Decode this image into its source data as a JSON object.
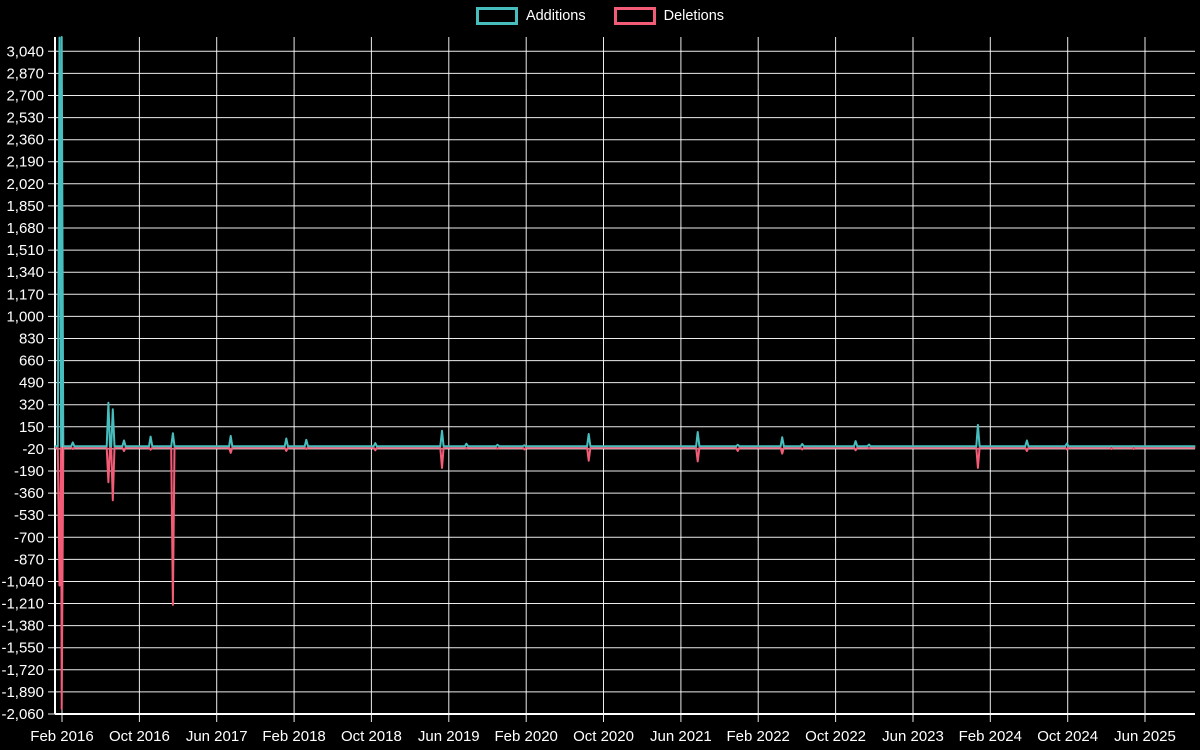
{
  "chart_data": {
    "type": "line",
    "title": "",
    "background_color": "#000000",
    "grid": "on",
    "grid_color": "#ffffff",
    "text_color": "#ffffff",
    "legend_position": "top-center",
    "series": [
      {
        "name": "Additions",
        "color": "#47bdbd"
      },
      {
        "name": "Deletions",
        "color": "#f25c77"
      }
    ],
    "x_axis": {
      "tick_labels": [
        "Feb 2016",
        "Oct 2016",
        "Jun 2017",
        "Feb 2018",
        "Oct 2018",
        "Jun 2019",
        "Feb 2020",
        "Oct 2020",
        "Jun 2021",
        "Feb 2022",
        "Oct 2022",
        "Jun 2023",
        "Feb 2024",
        "Oct 2024",
        "Jun 2025"
      ],
      "tick_month_offsets": [
        0,
        8,
        16,
        24,
        32,
        40,
        48,
        56,
        64,
        72,
        80,
        88,
        96,
        104,
        112
      ],
      "origin_month": "2016-02-01",
      "span_months": [
        -0.75,
        117.2
      ]
    },
    "y_axis": {
      "tick_values": [
        3040,
        2870,
        2700,
        2530,
        2360,
        2190,
        2020,
        1850,
        1680,
        1510,
        1340,
        1170,
        1000,
        830,
        660,
        490,
        320,
        150,
        -20,
        -190,
        -360,
        -530,
        -700,
        -870,
        -1040,
        -1210,
        -1380,
        -1550,
        -1720,
        -1890,
        -2060
      ],
      "tick_step": 170,
      "range": [
        -2060,
        3150
      ]
    },
    "baseline_value": 0,
    "events": [
      {
        "date": "2016-01-24",
        "additions": 3145,
        "deletions": -1060
      },
      {
        "date": "2016-01-31",
        "additions": 3150,
        "deletions": -2010
      },
      {
        "date": "2016-03-06",
        "additions": 30,
        "deletions": -10
      },
      {
        "date": "2016-06-26",
        "additions": 335,
        "deletions": -265
      },
      {
        "date": "2016-07-10",
        "additions": 285,
        "deletions": -405
      },
      {
        "date": "2016-08-14",
        "additions": 45,
        "deletions": -25
      },
      {
        "date": "2016-11-06",
        "additions": 75,
        "deletions": -15
      },
      {
        "date": "2017-01-15",
        "additions": 100,
        "deletions": -1210
      },
      {
        "date": "2017-07-16",
        "additions": 80,
        "deletions": -40
      },
      {
        "date": "2018-01-07",
        "additions": 60,
        "deletions": -25
      },
      {
        "date": "2018-03-11",
        "additions": 50,
        "deletions": -10
      },
      {
        "date": "2018-10-14",
        "additions": 25,
        "deletions": -20
      },
      {
        "date": "2019-05-12",
        "additions": 120,
        "deletions": -155
      },
      {
        "date": "2019-07-28",
        "additions": 20,
        "deletions": -5
      },
      {
        "date": "2019-11-03",
        "additions": 12,
        "deletions": -8
      },
      {
        "date": "2020-01-26",
        "additions": 8,
        "deletions": -14
      },
      {
        "date": "2020-08-16",
        "additions": 95,
        "deletions": -100
      },
      {
        "date": "2021-07-25",
        "additions": 110,
        "deletions": -105
      },
      {
        "date": "2021-11-28",
        "additions": 12,
        "deletions": -25
      },
      {
        "date": "2022-04-17",
        "additions": 70,
        "deletions": -45
      },
      {
        "date": "2022-06-19",
        "additions": 18,
        "deletions": -14
      },
      {
        "date": "2022-12-04",
        "additions": 40,
        "deletions": -20
      },
      {
        "date": "2023-01-15",
        "additions": 14,
        "deletions": -6
      },
      {
        "date": "2023-12-24",
        "additions": 165,
        "deletions": -155
      },
      {
        "date": "2024-05-26",
        "additions": 45,
        "deletions": -25
      },
      {
        "date": "2024-09-29",
        "additions": 22,
        "deletions": -14
      },
      {
        "date": "2025-02-16",
        "additions": 2,
        "deletions": -10
      },
      {
        "date": "2025-04-27",
        "additions": 2,
        "deletions": -10
      }
    ]
  }
}
